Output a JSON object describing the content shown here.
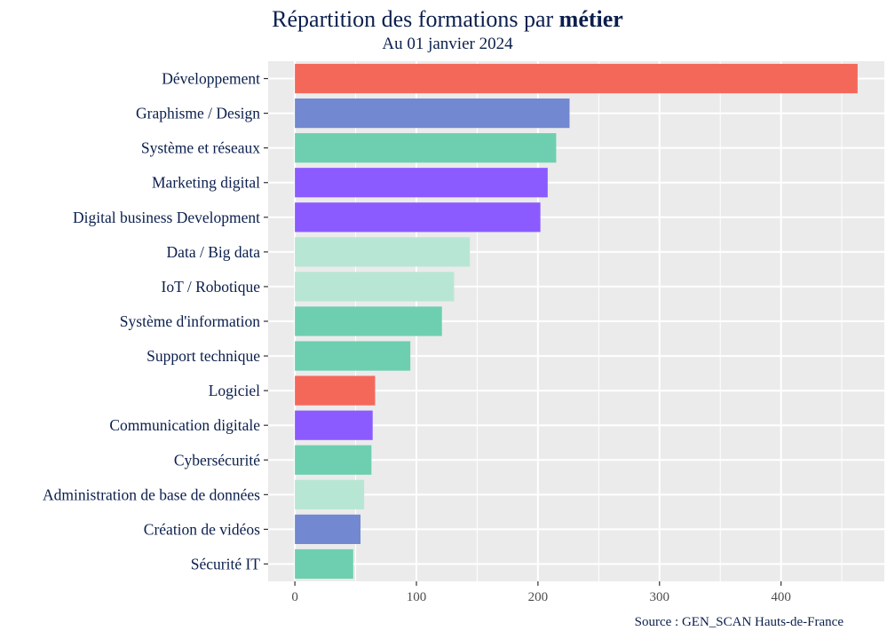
{
  "chart_data": {
    "type": "bar",
    "orientation": "horizontal",
    "title_prefix": "Répartition des formations par ",
    "title_bold": "métier",
    "subtitle": "Au 01 janvier 2024",
    "caption": "Source : GEN_SCAN Hauts-de-France",
    "categories": [
      "Développement",
      "Graphisme / Design",
      "Système et réseaux",
      "Marketing digital",
      "Digital business Development",
      "Data / Big data",
      "IoT / Robotique",
      "Système d'information",
      "Support technique",
      "Logiciel",
      "Communication digitale",
      "Cybersécurité",
      "Administration de base de données",
      "Création de vidéos",
      "Sécurité IT"
    ],
    "values": [
      463,
      226,
      215,
      208,
      202,
      144,
      131,
      121,
      95,
      66,
      64,
      63,
      57,
      54,
      48
    ],
    "colors": [
      "#f4685a",
      "#7288d0",
      "#6ecfb0",
      "#8c5bff",
      "#8c5bff",
      "#b8e6d4",
      "#b8e6d4",
      "#6ecfb0",
      "#6ecfb0",
      "#f4685a",
      "#8c5bff",
      "#6ecfb0",
      "#b8e6d4",
      "#7288d0",
      "#6ecfb0"
    ],
    "x_ticks": [
      0,
      100,
      200,
      300,
      400
    ],
    "xlim": [
      -22,
      485
    ],
    "xlabel": "",
    "ylabel": "",
    "grid": true,
    "panel_background": "#ebebeb",
    "grid_color": "#ffffff"
  }
}
